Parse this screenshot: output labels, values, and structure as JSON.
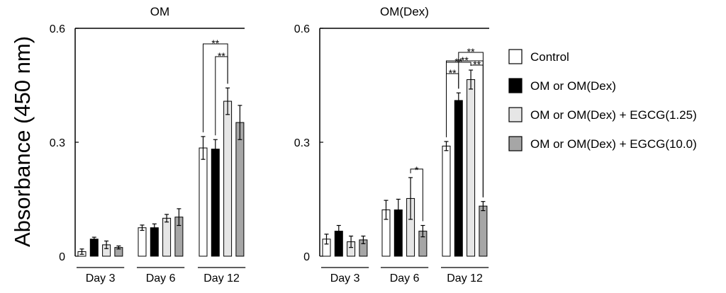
{
  "figure": {
    "ylabel": "Absorbance (450 nm)"
  },
  "colors": {
    "Control": "#ffffff",
    "OM or OM(Dex)": "#000000",
    "OM or OM(Dex) + EGCG(1.25)": "#e6e6e6",
    "OM or OM(Dex) + EGCG(10.0)": "#a6a6a6"
  },
  "chart_data": [
    {
      "type": "bar",
      "title": "OM",
      "xlabel": "",
      "ylabel": "Absorbance (450 nm)",
      "ylim": [
        0,
        0.6
      ],
      "yticks": [
        0,
        0.3,
        0.6
      ],
      "ytick_labels": [
        "0",
        "0.3",
        "0.6"
      ],
      "categories": [
        "Day 3",
        "Day 6",
        "Day 12"
      ],
      "series": [
        {
          "name": "Control",
          "values": [
            0.012,
            0.075,
            0.285
          ],
          "errors": [
            0.007,
            0.007,
            0.03
          ]
        },
        {
          "name": "OM or OM(Dex)",
          "values": [
            0.045,
            0.075,
            0.282
          ],
          "errors": [
            0.005,
            0.01,
            0.025
          ]
        },
        {
          "name": "OM or OM(Dex) + EGCG(1.25)",
          "values": [
            0.03,
            0.1,
            0.408
          ],
          "errors": [
            0.01,
            0.01,
            0.035
          ]
        },
        {
          "name": "OM or OM(Dex) + EGCG(10.0)",
          "values": [
            0.023,
            0.103,
            0.352
          ],
          "errors": [
            0.004,
            0.022,
            0.045
          ]
        }
      ],
      "significance": [
        {
          "category": "Day 12",
          "from": 0,
          "to": 2,
          "label": "**"
        },
        {
          "category": "Day 12",
          "from": 1,
          "to": 2,
          "label": "**"
        }
      ]
    },
    {
      "type": "bar",
      "title": "OM(Dex)",
      "xlabel": "",
      "ylabel": "Absorbance (450 nm)",
      "ylim": [
        0,
        0.6
      ],
      "yticks": [
        0,
        0.3,
        0.6
      ],
      "ytick_labels": [
        "0",
        "0.3",
        "0.6"
      ],
      "categories": [
        "Day 3",
        "Day 6",
        "Day 12"
      ],
      "series": [
        {
          "name": "Control",
          "values": [
            0.045,
            0.122,
            0.29
          ],
          "errors": [
            0.013,
            0.025,
            0.012
          ]
        },
        {
          "name": "OM or OM(Dex)",
          "values": [
            0.066,
            0.122,
            0.41
          ],
          "errors": [
            0.015,
            0.028,
            0.02
          ]
        },
        {
          "name": "OM or OM(Dex) + EGCG(1.25)",
          "values": [
            0.038,
            0.152,
            0.465
          ],
          "errors": [
            0.015,
            0.055,
            0.025
          ]
        },
        {
          "name": "OM or OM(Dex) + EGCG(10.0)",
          "values": [
            0.043,
            0.066,
            0.132
          ],
          "errors": [
            0.01,
            0.015,
            0.012
          ]
        }
      ],
      "significance": [
        {
          "category": "Day 6",
          "from": 2,
          "to": 3,
          "label": "*"
        },
        {
          "category": "Day 12",
          "from": 0,
          "to": 3,
          "label": "**"
        },
        {
          "category": "Day 12",
          "from": 0,
          "to": 2,
          "label": "**"
        },
        {
          "category": "Day 12",
          "from": 1,
          "to": 3,
          "label": "**"
        },
        {
          "category": "Day 12",
          "from": 0,
          "to": 1,
          "label": "**"
        },
        {
          "category": "Day 12",
          "from": 2,
          "to": 3,
          "label": "**"
        }
      ]
    }
  ],
  "legend": {
    "position": "right",
    "items": [
      {
        "label": "Control",
        "color": "#ffffff"
      },
      {
        "label": "OM or OM(Dex)",
        "color": "#000000"
      },
      {
        "label": "OM or OM(Dex) + EGCG(1.25)",
        "color": "#e6e6e6"
      },
      {
        "label": "OM or OM(Dex) + EGCG(10.0)",
        "color": "#a6a6a6"
      }
    ]
  }
}
